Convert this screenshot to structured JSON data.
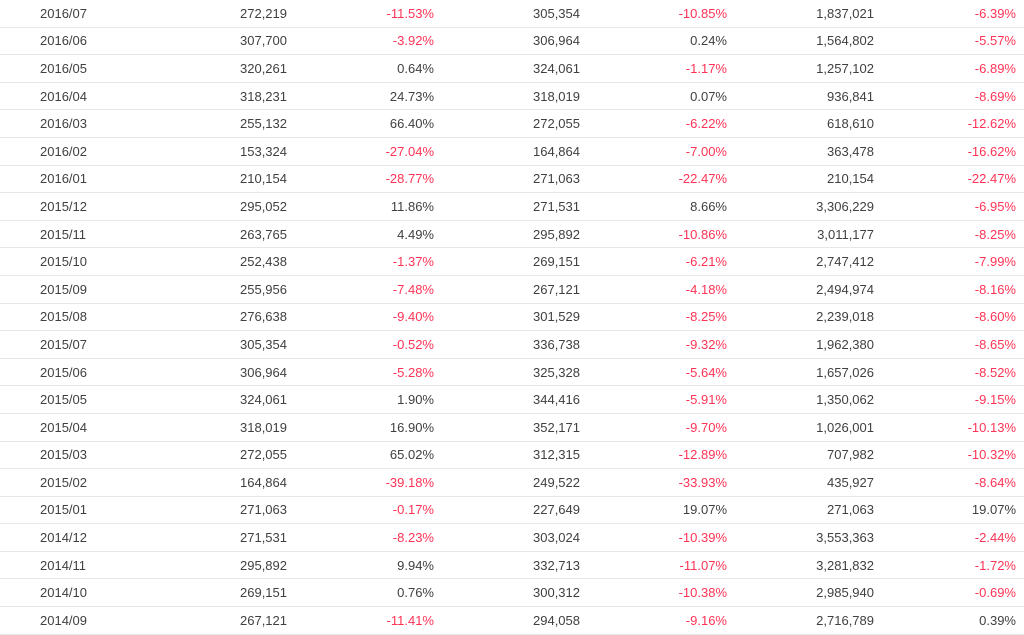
{
  "colors": {
    "text": "#404040",
    "negative": "#ff3355",
    "border": "#e7e7e7",
    "background": "#ffffff"
  },
  "chart_data": {
    "type": "table",
    "columns": [
      "month",
      "monthly_value",
      "month_over_month_pct",
      "same_month_prior_year_value",
      "year_over_year_pct",
      "cumulative_value",
      "cumulative_pct"
    ],
    "rows": [
      [
        "2016/07",
        "272,219",
        "-11.53%",
        "305,354",
        "-10.85%",
        "1,837,021",
        "-6.39%"
      ],
      [
        "2016/06",
        "307,700",
        "-3.92%",
        "306,964",
        "0.24%",
        "1,564,802",
        "-5.57%"
      ],
      [
        "2016/05",
        "320,261",
        "0.64%",
        "324,061",
        "-1.17%",
        "1,257,102",
        "-6.89%"
      ],
      [
        "2016/04",
        "318,231",
        "24.73%",
        "318,019",
        "0.07%",
        "936,841",
        "-8.69%"
      ],
      [
        "2016/03",
        "255,132",
        "66.40%",
        "272,055",
        "-6.22%",
        "618,610",
        "-12.62%"
      ],
      [
        "2016/02",
        "153,324",
        "-27.04%",
        "164,864",
        "-7.00%",
        "363,478",
        "-16.62%"
      ],
      [
        "2016/01",
        "210,154",
        "-28.77%",
        "271,063",
        "-22.47%",
        "210,154",
        "-22.47%"
      ],
      [
        "2015/12",
        "295,052",
        "11.86%",
        "271,531",
        "8.66%",
        "3,306,229",
        "-6.95%"
      ],
      [
        "2015/11",
        "263,765",
        "4.49%",
        "295,892",
        "-10.86%",
        "3,011,177",
        "-8.25%"
      ],
      [
        "2015/10",
        "252,438",
        "-1.37%",
        "269,151",
        "-6.21%",
        "2,747,412",
        "-7.99%"
      ],
      [
        "2015/09",
        "255,956",
        "-7.48%",
        "267,121",
        "-4.18%",
        "2,494,974",
        "-8.16%"
      ],
      [
        "2015/08",
        "276,638",
        "-9.40%",
        "301,529",
        "-8.25%",
        "2,239,018",
        "-8.60%"
      ],
      [
        "2015/07",
        "305,354",
        "-0.52%",
        "336,738",
        "-9.32%",
        "1,962,380",
        "-8.65%"
      ],
      [
        "2015/06",
        "306,964",
        "-5.28%",
        "325,328",
        "-5.64%",
        "1,657,026",
        "-8.52%"
      ],
      [
        "2015/05",
        "324,061",
        "1.90%",
        "344,416",
        "-5.91%",
        "1,350,062",
        "-9.15%"
      ],
      [
        "2015/04",
        "318,019",
        "16.90%",
        "352,171",
        "-9.70%",
        "1,026,001",
        "-10.13%"
      ],
      [
        "2015/03",
        "272,055",
        "65.02%",
        "312,315",
        "-12.89%",
        "707,982",
        "-10.32%"
      ],
      [
        "2015/02",
        "164,864",
        "-39.18%",
        "249,522",
        "-33.93%",
        "435,927",
        "-8.64%"
      ],
      [
        "2015/01",
        "271,063",
        "-0.17%",
        "227,649",
        "19.07%",
        "271,063",
        "19.07%"
      ],
      [
        "2014/12",
        "271,531",
        "-8.23%",
        "303,024",
        "-10.39%",
        "3,553,363",
        "-2.44%"
      ],
      [
        "2014/11",
        "295,892",
        "9.94%",
        "332,713",
        "-11.07%",
        "3,281,832",
        "-1.72%"
      ],
      [
        "2014/10",
        "269,151",
        "0.76%",
        "300,312",
        "-10.38%",
        "2,985,940",
        "-0.69%"
      ],
      [
        "2014/09",
        "267,121",
        "-11.41%",
        "294,058",
        "-9.16%",
        "2,716,789",
        "0.39%"
      ]
    ]
  }
}
